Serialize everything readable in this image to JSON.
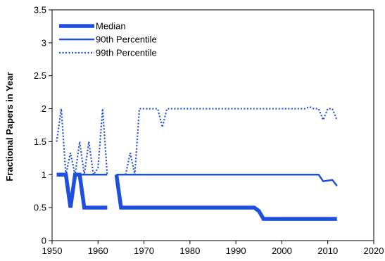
{
  "chart_data": {
    "type": "line",
    "title": "",
    "xlabel": "",
    "ylabel": "Fractional Papers in Year",
    "xlim": [
      1950,
      2020
    ],
    "ylim": [
      0,
      3.5
    ],
    "xticks": [
      "1950",
      "1960",
      "1970",
      "1980",
      "1990",
      "2000",
      "2010",
      "2020"
    ],
    "yticks": [
      "0",
      "0.5",
      "1",
      "1.5",
      "2",
      "2.5",
      "3",
      "3.5"
    ],
    "grid": false,
    "legend_position": "top-left",
    "color": "#1f4fe0",
    "series": [
      {
        "name": "Median",
        "style": "thick",
        "points": [
          [
            1951,
            1
          ],
          [
            1953,
            1
          ],
          [
            1954,
            0.5
          ],
          [
            1955,
            1
          ],
          [
            1956,
            1
          ],
          [
            1957,
            0.5
          ],
          [
            1962,
            0.5
          ],
          null,
          [
            1964,
            1
          ],
          [
            1965,
            0.5
          ],
          [
            1993,
            0.5
          ],
          [
            1994,
            0.5
          ],
          [
            1995,
            0.45
          ],
          [
            1996,
            0.33
          ],
          [
            2012,
            0.33
          ]
        ]
      },
      {
        "name": "90th Percentile",
        "style": "solid",
        "points": [
          [
            1951,
            1
          ],
          [
            1952,
            1
          ],
          [
            1953,
            1
          ],
          [
            1954,
            0.5
          ],
          [
            1955,
            1
          ],
          [
            1956,
            1
          ],
          [
            1957,
            1
          ],
          [
            1962,
            1
          ],
          null,
          [
            1964,
            1
          ],
          [
            2008,
            1
          ],
          [
            2009,
            0.9
          ],
          [
            2011,
            0.92
          ],
          [
            2012,
            0.83
          ]
        ]
      },
      {
        "name": "99th Percentile",
        "style": "dotted",
        "points": [
          [
            1951,
            1.5
          ],
          [
            1952,
            2
          ],
          [
            1953,
            1
          ],
          [
            1954,
            1.33
          ],
          [
            1955,
            1
          ],
          [
            1956,
            1.5
          ],
          [
            1957,
            1
          ],
          [
            1958,
            1.5
          ],
          [
            1959,
            1
          ],
          [
            1960,
            1.1
          ],
          [
            1961,
            2
          ],
          [
            1962,
            1
          ],
          null,
          [
            1966,
            1
          ],
          [
            1967,
            1.33
          ],
          [
            1968,
            1
          ],
          [
            1969,
            2
          ],
          [
            1973,
            2
          ],
          [
            1974,
            1.72
          ],
          [
            1975,
            2
          ],
          [
            2005,
            2
          ],
          [
            2006,
            2.03
          ],
          [
            2007,
            2
          ],
          [
            2008,
            2
          ],
          [
            2009,
            1.83
          ],
          [
            2010,
            2
          ],
          [
            2011,
            2
          ],
          [
            2012,
            1.83
          ]
        ]
      }
    ]
  }
}
